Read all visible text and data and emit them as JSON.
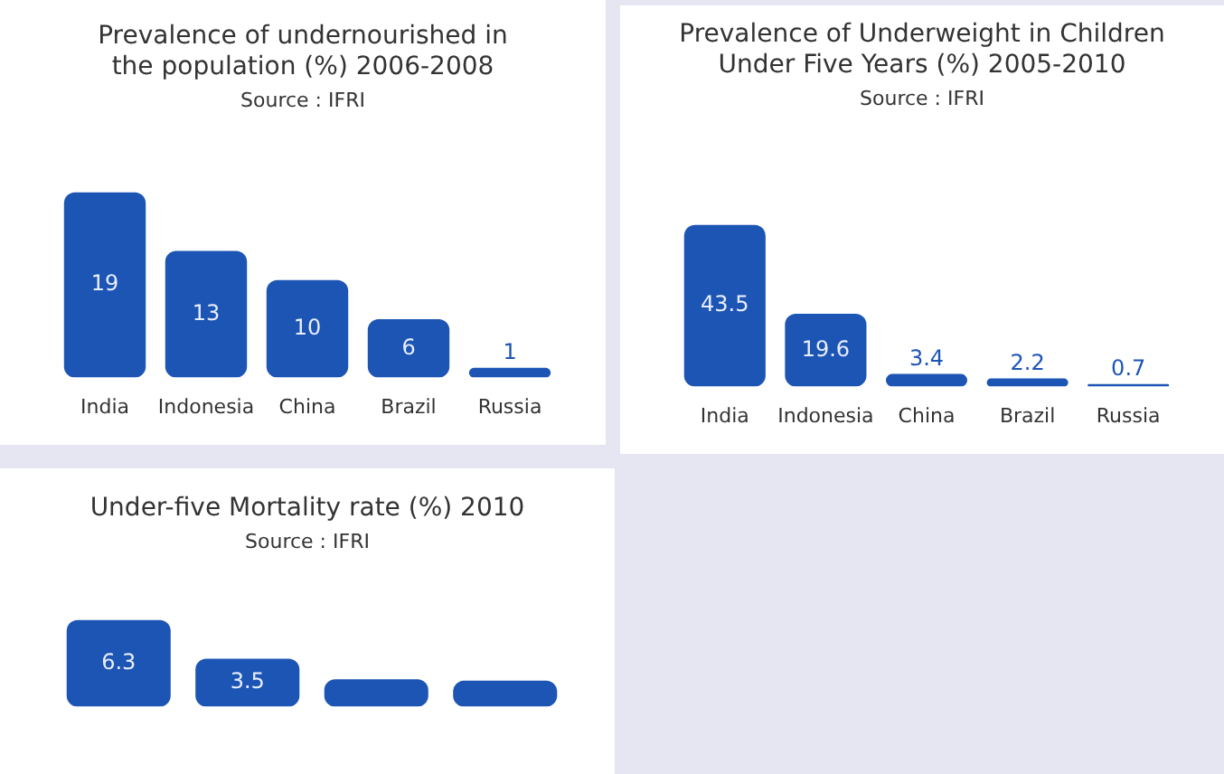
{
  "chart_data": [
    {
      "type": "bar",
      "title": "Prevalence of undernourished in the population (%) 2006-2008",
      "subtitle": "Source : IFRI",
      "categories": [
        "India",
        "Indonesia",
        "China",
        "Brazil",
        "Russia"
      ],
      "values": [
        19,
        13,
        10,
        6,
        1
      ],
      "color": "#1d55b5",
      "data_labels": true,
      "grid": false,
      "legend": false
    },
    {
      "type": "bar",
      "title": "Prevalence of Underweight in Children Under Five Years (%) 2005-2010",
      "subtitle": "Source : IFRI",
      "categories": [
        "India",
        "Indonesia",
        "China",
        "Brazil",
        "Russia"
      ],
      "values": [
        43.5,
        19.6,
        3.4,
        2.2,
        0.7
      ],
      "color": "#1d55b5",
      "data_labels": true,
      "grid": false,
      "legend": false
    },
    {
      "type": "bar",
      "title": "Under-five  Mortality rate (%) 2010",
      "subtitle": "Source : IFRI",
      "categories": [
        null,
        null,
        null,
        null
      ],
      "values": [
        6.3,
        3.5,
        2.0,
        1.9
      ],
      "value_labels": [
        "6.3",
        "3.5",
        null,
        null
      ],
      "color": "#1d55b5",
      "grid": false,
      "legend": false
    }
  ]
}
